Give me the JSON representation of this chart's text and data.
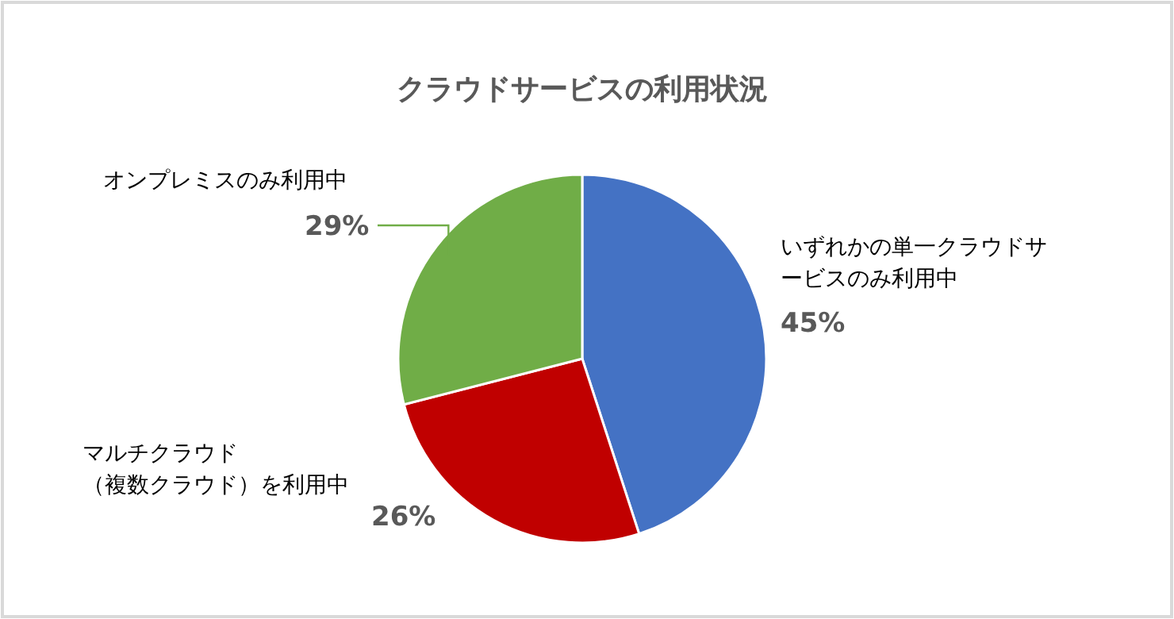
{
  "chart_data": {
    "type": "pie",
    "title": "クラウドサービスの利用状況",
    "categories": [
      "いずれかの単一クラウドサービスのみ利用中",
      "マルチクラウド（複数クラウド）を利用中",
      "オンプレミスのみ利用中"
    ],
    "values": [
      45,
      26,
      29
    ],
    "colors": [
      "#4472c4",
      "#c00000",
      "#70ad47"
    ],
    "value_labels": [
      "45%",
      "26%",
      "29%"
    ]
  }
}
